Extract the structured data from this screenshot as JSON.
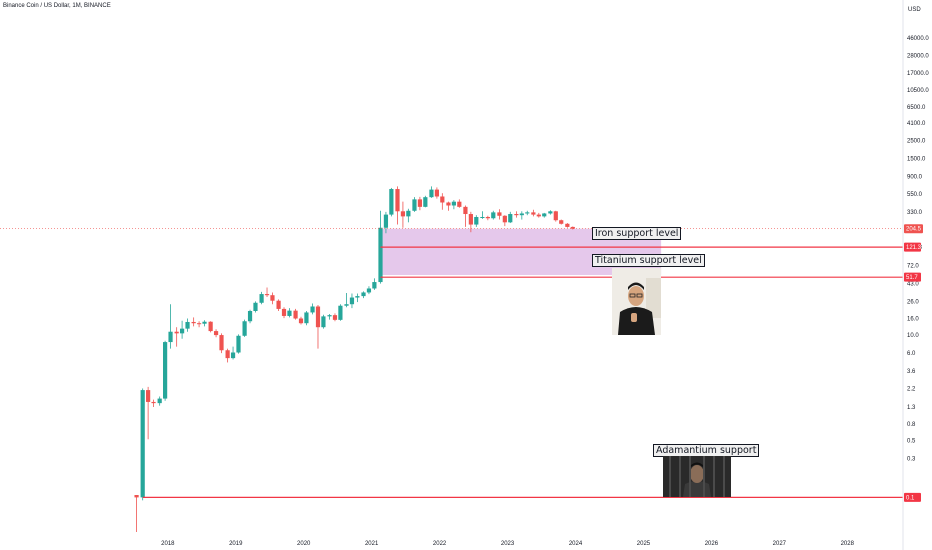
{
  "chart_data": {
    "type": "candlestick",
    "title": "Binance Coin / US Dollar, 1M, BINANCE",
    "currency": "USD",
    "yscale": "log",
    "ylim": [
      0.0316,
      127000
    ],
    "y_ticks": [
      46000.0,
      28000.0,
      17000.0,
      10500.0,
      6500.0,
      4100.0,
      2500.0,
      1500.0,
      900.0,
      550.0,
      330.0,
      200.0,
      121.3,
      72.0,
      43.0,
      26.0,
      16.0,
      10.0,
      6.0,
      3.6,
      2.2,
      1.3,
      0.8,
      0.5,
      0.3,
      0.1
    ],
    "y_tick_labels": [
      "46000.0",
      "28000.0",
      "17000.0",
      "10500.0",
      "6500.0",
      "4100.0",
      "2500.0",
      "1500.0",
      "900.0",
      "550.0",
      "330.0",
      "200.0",
      "121.3",
      "72.0",
      "43.0",
      "26.0",
      "16.0",
      "10.0",
      "6.0",
      "3.6",
      "2.2",
      "1.3",
      "0.8",
      "0.5",
      "0.3",
      "0.1"
    ],
    "x_ticks": [
      "2018",
      "2019",
      "2020",
      "2021",
      "2022",
      "2023",
      "2024",
      "2025",
      "2026",
      "2027",
      "2028"
    ],
    "x_tick_years": [
      2018,
      2019,
      2020,
      2021,
      2022,
      2023,
      2024,
      2025,
      2026,
      2027,
      2028
    ],
    "x_range": [
      2015.53,
      2028.82
    ],
    "up_color": "#26a69a",
    "down_color": "#ef5350",
    "candles": [
      {
        "t": 2017.54,
        "o": 0.107,
        "h": 0.107,
        "l": 0.0375,
        "c": 0.1
      },
      {
        "t": 2017.63,
        "o": 0.1,
        "h": 2.2,
        "l": 0.092,
        "c": 2.1
      },
      {
        "t": 2017.71,
        "o": 2.1,
        "h": 2.3,
        "l": 0.52,
        "c": 1.5
      },
      {
        "t": 2017.79,
        "o": 1.5,
        "h": 1.6,
        "l": 1.3,
        "c": 1.45
      },
      {
        "t": 2017.88,
        "o": 1.45,
        "h": 1.75,
        "l": 1.35,
        "c": 1.65
      },
      {
        "t": 2017.96,
        "o": 1.65,
        "h": 8.5,
        "l": 1.55,
        "c": 8.2
      },
      {
        "t": 2018.04,
        "o": 8.2,
        "h": 24.0,
        "l": 6.8,
        "c": 11.0
      },
      {
        "t": 2018.13,
        "o": 11.0,
        "h": 12.5,
        "l": 7.2,
        "c": 10.5
      },
      {
        "t": 2018.21,
        "o": 10.5,
        "h": 15.0,
        "l": 9.0,
        "c": 12.0
      },
      {
        "t": 2018.29,
        "o": 12.0,
        "h": 16.0,
        "l": 11.0,
        "c": 14.5
      },
      {
        "t": 2018.38,
        "o": 14.5,
        "h": 16.5,
        "l": 12.8,
        "c": 14.0
      },
      {
        "t": 2018.46,
        "o": 14.0,
        "h": 14.8,
        "l": 12.5,
        "c": 13.8
      },
      {
        "t": 2018.54,
        "o": 13.8,
        "h": 15.2,
        "l": 12.8,
        "c": 14.6
      },
      {
        "t": 2018.63,
        "o": 14.6,
        "h": 14.8,
        "l": 10.8,
        "c": 11.2
      },
      {
        "t": 2018.71,
        "o": 11.2,
        "h": 11.8,
        "l": 9.4,
        "c": 10.0
      },
      {
        "t": 2018.79,
        "o": 10.0,
        "h": 10.5,
        "l": 6.0,
        "c": 6.5
      },
      {
        "t": 2018.88,
        "o": 6.5,
        "h": 6.8,
        "l": 4.6,
        "c": 5.2
      },
      {
        "t": 2018.96,
        "o": 5.2,
        "h": 7.2,
        "l": 5.0,
        "c": 6.1
      },
      {
        "t": 2019.04,
        "o": 6.1,
        "h": 10.2,
        "l": 5.9,
        "c": 9.8
      },
      {
        "t": 2019.13,
        "o": 9.8,
        "h": 15.5,
        "l": 9.5,
        "c": 14.8
      },
      {
        "t": 2019.21,
        "o": 14.8,
        "h": 20.5,
        "l": 14.0,
        "c": 19.8
      },
      {
        "t": 2019.29,
        "o": 19.8,
        "h": 26.0,
        "l": 19.0,
        "c": 25.0
      },
      {
        "t": 2019.38,
        "o": 25.0,
        "h": 34.0,
        "l": 24.0,
        "c": 32.0
      },
      {
        "t": 2019.46,
        "o": 32.0,
        "h": 38.5,
        "l": 29.5,
        "c": 31.0
      },
      {
        "t": 2019.54,
        "o": 31.0,
        "h": 33.5,
        "l": 24.0,
        "c": 26.5
      },
      {
        "t": 2019.63,
        "o": 26.5,
        "h": 27.5,
        "l": 19.8,
        "c": 21.0
      },
      {
        "t": 2019.71,
        "o": 21.0,
        "h": 22.0,
        "l": 16.2,
        "c": 17.2
      },
      {
        "t": 2019.79,
        "o": 17.2,
        "h": 21.5,
        "l": 16.5,
        "c": 20.0
      },
      {
        "t": 2019.88,
        "o": 20.0,
        "h": 21.0,
        "l": 15.5,
        "c": 16.0
      },
      {
        "t": 2019.96,
        "o": 16.0,
        "h": 16.8,
        "l": 13.5,
        "c": 14.0
      },
      {
        "t": 2020.04,
        "o": 14.0,
        "h": 19.8,
        "l": 13.2,
        "c": 19.0
      },
      {
        "t": 2020.13,
        "o": 19.0,
        "h": 24.5,
        "l": 18.0,
        "c": 22.5
      },
      {
        "t": 2020.21,
        "o": 22.5,
        "h": 23.5,
        "l": 6.8,
        "c": 12.5
      },
      {
        "t": 2020.29,
        "o": 12.5,
        "h": 17.8,
        "l": 12.0,
        "c": 17.0
      },
      {
        "t": 2020.38,
        "o": 17.0,
        "h": 18.2,
        "l": 15.5,
        "c": 17.6
      },
      {
        "t": 2020.46,
        "o": 17.6,
        "h": 18.5,
        "l": 14.8,
        "c": 15.4
      },
      {
        "t": 2020.54,
        "o": 15.4,
        "h": 24.0,
        "l": 15.0,
        "c": 23.0
      },
      {
        "t": 2020.63,
        "o": 23.0,
        "h": 33.0,
        "l": 22.0,
        "c": 24.0
      },
      {
        "t": 2020.71,
        "o": 24.0,
        "h": 32.5,
        "l": 21.5,
        "c": 29.0
      },
      {
        "t": 2020.79,
        "o": 29.0,
        "h": 32.5,
        "l": 25.5,
        "c": 30.2
      },
      {
        "t": 2020.88,
        "o": 30.2,
        "h": 34.5,
        "l": 28.5,
        "c": 33.5
      },
      {
        "t": 2020.96,
        "o": 33.5,
        "h": 40.0,
        "l": 32.0,
        "c": 37.5
      },
      {
        "t": 2021.04,
        "o": 37.5,
        "h": 50.0,
        "l": 36.0,
        "c": 45.0
      },
      {
        "t": 2021.13,
        "o": 45.0,
        "h": 340.0,
        "l": 43.0,
        "c": 210.0
      },
      {
        "t": 2021.21,
        "o": 210.0,
        "h": 330.0,
        "l": 180.0,
        "c": 305.0
      },
      {
        "t": 2021.29,
        "o": 305.0,
        "h": 650.0,
        "l": 290.0,
        "c": 630.0
      },
      {
        "t": 2021.38,
        "o": 630.0,
        "h": 680.0,
        "l": 230.0,
        "c": 335.0
      },
      {
        "t": 2021.46,
        "o": 335.0,
        "h": 440.0,
        "l": 210.0,
        "c": 290.0
      },
      {
        "t": 2021.54,
        "o": 290.0,
        "h": 360.0,
        "l": 245.0,
        "c": 340.0
      },
      {
        "t": 2021.63,
        "o": 340.0,
        "h": 500.0,
        "l": 330.0,
        "c": 470.0
      },
      {
        "t": 2021.71,
        "o": 470.0,
        "h": 505.0,
        "l": 345.0,
        "c": 380.0
      },
      {
        "t": 2021.79,
        "o": 380.0,
        "h": 520.0,
        "l": 375.0,
        "c": 500.0
      },
      {
        "t": 2021.88,
        "o": 500.0,
        "h": 680.0,
        "l": 490.0,
        "c": 620.0
      },
      {
        "t": 2021.96,
        "o": 620.0,
        "h": 660.0,
        "l": 480.0,
        "c": 510.0
      },
      {
        "t": 2022.04,
        "o": 510.0,
        "h": 560.0,
        "l": 350.0,
        "c": 430.0
      },
      {
        "t": 2022.13,
        "o": 430.0,
        "h": 440.0,
        "l": 340.0,
        "c": 395.0
      },
      {
        "t": 2022.21,
        "o": 395.0,
        "h": 460.0,
        "l": 355.0,
        "c": 440.0
      },
      {
        "t": 2022.29,
        "o": 440.0,
        "h": 470.0,
        "l": 370.0,
        "c": 380.0
      },
      {
        "t": 2022.38,
        "o": 380.0,
        "h": 395.0,
        "l": 215.0,
        "c": 310.0
      },
      {
        "t": 2022.46,
        "o": 310.0,
        "h": 330.0,
        "l": 185.0,
        "c": 230.0
      },
      {
        "t": 2022.54,
        "o": 230.0,
        "h": 300.0,
        "l": 215.0,
        "c": 285.0
      },
      {
        "t": 2022.63,
        "o": 285.0,
        "h": 335.0,
        "l": 270.0,
        "c": 285.0
      },
      {
        "t": 2022.71,
        "o": 285.0,
        "h": 295.0,
        "l": 260.0,
        "c": 275.0
      },
      {
        "t": 2022.79,
        "o": 275.0,
        "h": 340.0,
        "l": 265.0,
        "c": 325.0
      },
      {
        "t": 2022.88,
        "o": 325.0,
        "h": 355.0,
        "l": 265.0,
        "c": 295.0
      },
      {
        "t": 2022.96,
        "o": 295.0,
        "h": 300.0,
        "l": 220.0,
        "c": 245.0
      },
      {
        "t": 2023.04,
        "o": 245.0,
        "h": 330.0,
        "l": 240.0,
        "c": 310.0
      },
      {
        "t": 2023.13,
        "o": 310.0,
        "h": 335.0,
        "l": 280.0,
        "c": 300.0
      },
      {
        "t": 2023.21,
        "o": 300.0,
        "h": 335.0,
        "l": 265.0,
        "c": 315.0
      },
      {
        "t": 2023.29,
        "o": 315.0,
        "h": 340.0,
        "l": 300.0,
        "c": 325.0
      },
      {
        "t": 2023.38,
        "o": 325.0,
        "h": 350.0,
        "l": 290.0,
        "c": 305.0
      },
      {
        "t": 2023.46,
        "o": 305.0,
        "h": 320.0,
        "l": 280.0,
        "c": 290.0
      },
      {
        "t": 2023.54,
        "o": 290.0,
        "h": 320.0,
        "l": 280.0,
        "c": 315.0
      },
      {
        "t": 2023.63,
        "o": 315.0,
        "h": 345.0,
        "l": 305.0,
        "c": 335.0
      },
      {
        "t": 2023.71,
        "o": 335.0,
        "h": 340.0,
        "l": 250.0,
        "c": 260.0
      },
      {
        "t": 2023.79,
        "o": 260.0,
        "h": 265.0,
        "l": 230.0,
        "c": 235.0
      },
      {
        "t": 2023.88,
        "o": 235.0,
        "h": 240.0,
        "l": 210.0,
        "c": 215.0
      },
      {
        "t": 2023.96,
        "o": 215.0,
        "h": 218.0,
        "l": 200.0,
        "c": 204.5
      }
    ],
    "last_price": {
      "value": 204.5,
      "label": "204.5",
      "color": "#ef5350"
    },
    "support_zone": {
      "from": 55.0,
      "to": 204.5,
      "x_end": 2025.26,
      "color": "#e1bee7"
    },
    "horizontal_lines": [
      {
        "value": 121.3,
        "label": "121.3",
        "x_start": 2021.13,
        "color": "#f23645"
      },
      {
        "value": 51.7,
        "label": "51.7",
        "x_start": 2021.13,
        "color": "#f23645"
      },
      {
        "value": 0.1,
        "label": "0.1",
        "x_start": 2017.63,
        "color": "#f23645"
      }
    ],
    "annotations": [
      {
        "text": "Iron support level"
      },
      {
        "text": "Titanium support level"
      },
      {
        "text": "Adamantium support"
      }
    ]
  }
}
